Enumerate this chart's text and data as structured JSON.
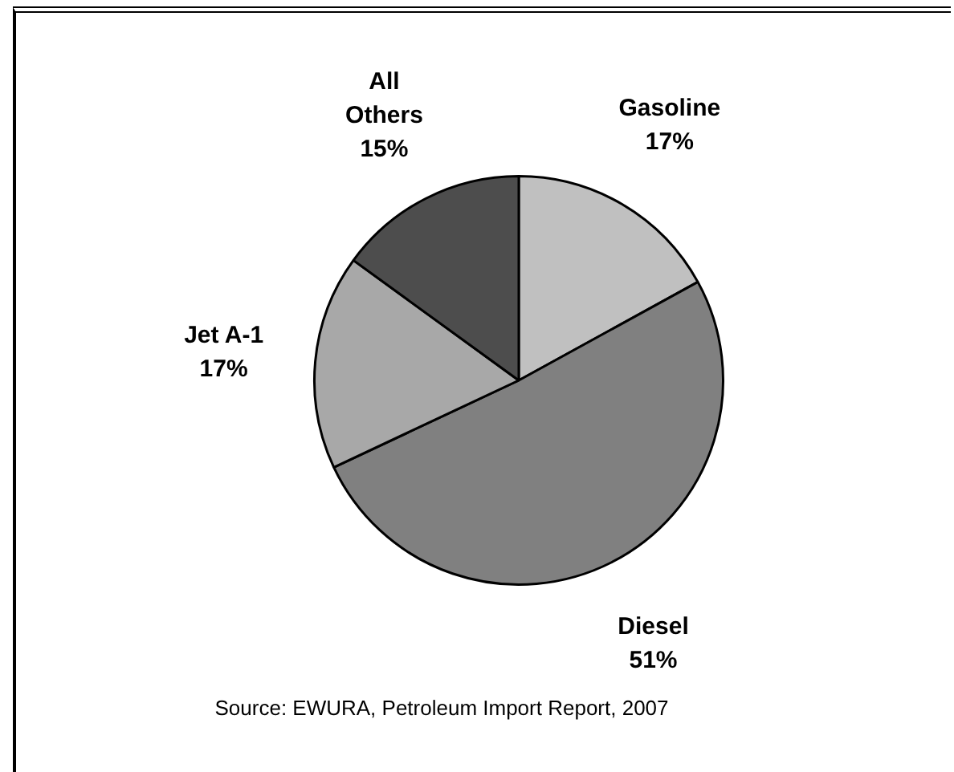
{
  "chart_data": {
    "type": "pie",
    "categories": [
      "Gasoline",
      "Diesel",
      "Jet A-1",
      "All Others"
    ],
    "values": [
      17,
      51,
      17,
      15
    ],
    "colors": [
      "#c0c0c0",
      "#808080",
      "#a8a8a8",
      "#4d4d4d"
    ],
    "value_labels": [
      "17%",
      "51%",
      "17%",
      "15%"
    ],
    "legend": false,
    "annotations": [
      "Source: EWURA, Petroleum Import Report, 2007"
    ]
  }
}
